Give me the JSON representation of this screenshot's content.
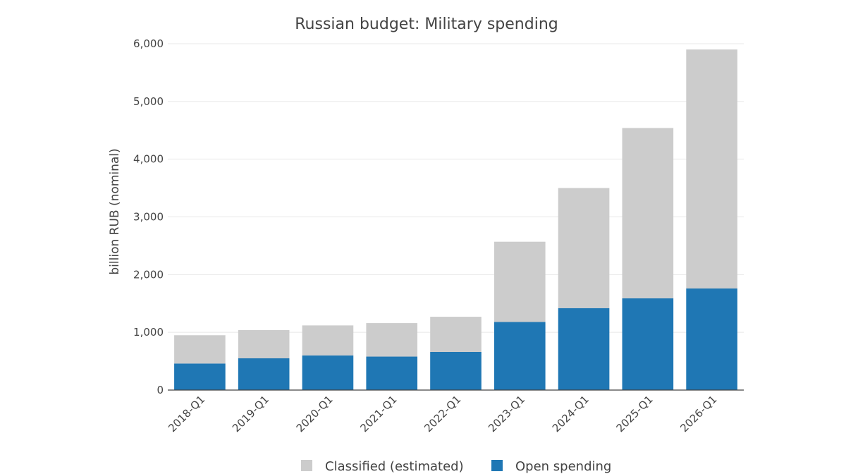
{
  "chart_data": {
    "type": "bar",
    "stacked": true,
    "title": "Russian budget: Military spending",
    "xlabel": "",
    "ylabel": "billion RUB (nominal)",
    "ylim": [
      0,
      6000
    ],
    "yticks": [
      0,
      1000,
      2000,
      3000,
      4000,
      5000,
      6000
    ],
    "ytick_labels": [
      "0",
      "1,000",
      "2,000",
      "3,000",
      "4,000",
      "5,000",
      "6,000"
    ],
    "grid": true,
    "legend_position": "bottom",
    "categories": [
      "2018-Q1",
      "2019-Q1",
      "2020-Q1",
      "2021-Q1",
      "2022-Q1",
      "2023-Q1",
      "2024-Q1",
      "2025-Q1",
      "2026-Q1"
    ],
    "series": [
      {
        "name": "Open spending",
        "color": "#1f77b4",
        "values": [
          460,
          550,
          600,
          580,
          660,
          1180,
          1420,
          1590,
          1760
        ]
      },
      {
        "name": "Classified (estimated)",
        "color": "#cccccc",
        "values": [
          490,
          490,
          520,
          580,
          610,
          1390,
          2080,
          2950,
          4140
        ]
      }
    ],
    "legend_order": [
      "Classified (estimated)",
      "Open spending"
    ]
  }
}
